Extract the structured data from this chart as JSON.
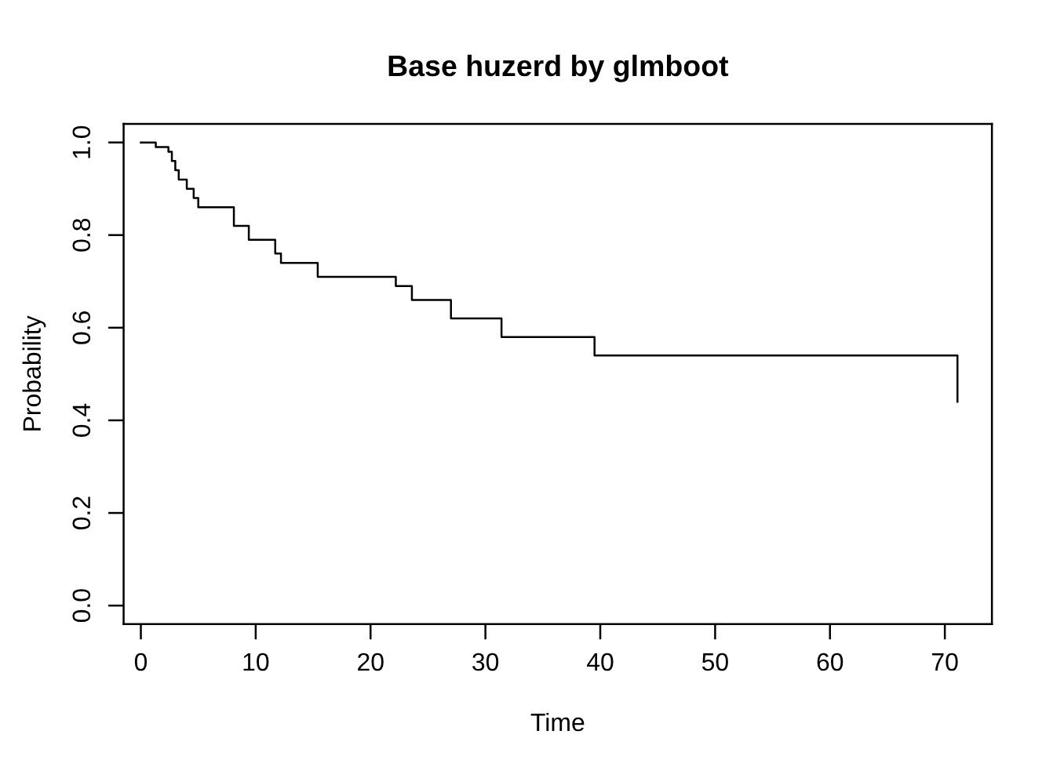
{
  "chart_data": {
    "type": "step",
    "title": "Base huzerd by glmboot",
    "xlabel": "Time",
    "ylabel": "Probability",
    "x": [
      0,
      1.3,
      2.4,
      2.7,
      3.0,
      3.3,
      4.0,
      4.6,
      5.0,
      8.1,
      9.4,
      11.7,
      12.2,
      15.4,
      22.2,
      23.6,
      27.0,
      31.4,
      39.5,
      71.1
    ],
    "series": [
      {
        "color": "#000000",
        "values": [
          1.0,
          0.99,
          0.98,
          0.96,
          0.94,
          0.92,
          0.9,
          0.88,
          0.86,
          0.82,
          0.79,
          0.76,
          0.74,
          0.71,
          0.69,
          0.66,
          0.62,
          0.58,
          0.54,
          0.44
        ]
      }
    ],
    "xlim": [
      -1.5,
      74.1
    ],
    "ylim": [
      -0.04,
      1.04
    ],
    "xticks": [
      0,
      10,
      20,
      30,
      40,
      50,
      60,
      70
    ],
    "yticks": [
      {
        "value": 0,
        "label": "0.0"
      },
      0.2,
      0.4,
      0.6,
      0.8,
      {
        "value": 1,
        "label": "1.0"
      }
    ],
    "grid": false,
    "marker": "none",
    "line_style": "solid"
  }
}
